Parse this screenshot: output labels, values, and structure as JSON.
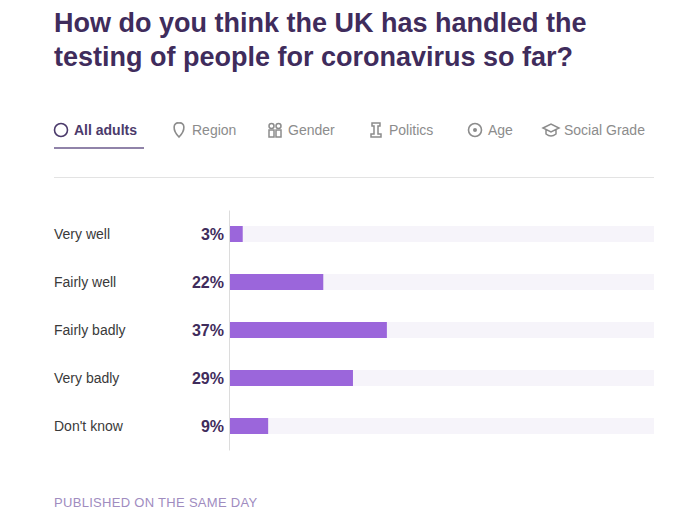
{
  "chart_data": {
    "type": "bar",
    "orientation": "horizontal",
    "title": "How do you think the UK has handled the testing of people for coronavirus so far?",
    "categories": [
      "Very well",
      "Fairly well",
      "Fairly badly",
      "Very badly",
      "Don't know"
    ],
    "values": [
      3,
      22,
      37,
      29,
      9
    ],
    "value_labels": [
      "3%",
      "22%",
      "37%",
      "29%",
      "9%"
    ],
    "color": "#9b66db",
    "xlim": [
      0,
      100
    ],
    "data_labels": true,
    "tick_labels": false,
    "grid": false
  },
  "tabs": [
    "All adults",
    "Region",
    "Gender",
    "Politics",
    "Age",
    "Social Grade"
  ],
  "footer": "PUBLISHED ON THE SAME DAY"
}
